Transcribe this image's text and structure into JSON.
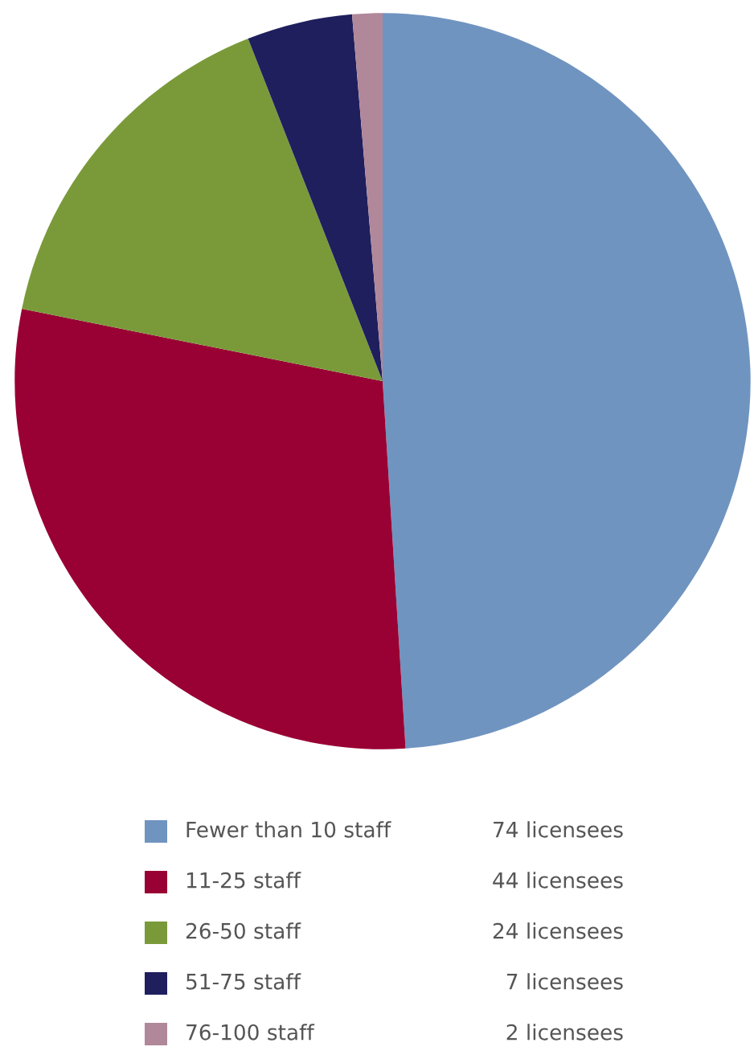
{
  "chart_data": {
    "type": "pie",
    "categories": [
      "Fewer than 10 staff",
      "11-25 staff",
      "26-50 staff",
      "51-75 staff",
      "76-100 staff"
    ],
    "values": [
      74,
      44,
      24,
      7,
      2
    ],
    "value_labels": [
      "74 licensees",
      "44 licensees",
      "24 licensees",
      "7 licensees",
      "2 licensees"
    ],
    "colors": [
      "#7094c0",
      "#990033",
      "#7a9a3a",
      "#1f1f5e",
      "#b0889a"
    ],
    "legend": "bottom"
  }
}
